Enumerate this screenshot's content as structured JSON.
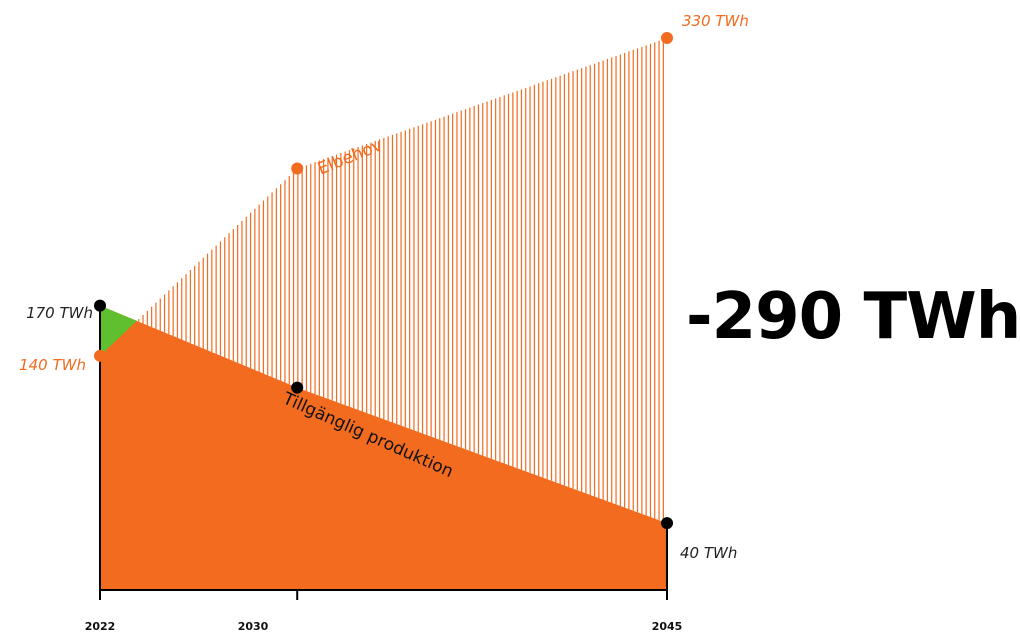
{
  "headline_gap": "-290 TWh",
  "colors": {
    "demand": "#f26b1f",
    "supply": "#f26b1f",
    "surplus": "#5fbf2e",
    "axis": "#000000",
    "supply_marker": "#000000",
    "demand_marker": "#f26b1f"
  },
  "chart_data": {
    "type": "area",
    "x": [
      2022,
      2030,
      2045
    ],
    "x_ticks": [
      "2022",
      "2030",
      "2045"
    ],
    "unit": "TWh",
    "ylim": [
      0,
      330
    ],
    "series": [
      {
        "name": "Elbehov",
        "style": "hatched",
        "values": [
          140,
          252,
          330
        ],
        "point_labels": [
          "140 TWh",
          "",
          "330 TWh"
        ]
      },
      {
        "name": "Tillgänglig produktion",
        "style": "filled",
        "values": [
          170,
          121,
          40
        ],
        "point_labels": [
          "170 TWh",
          "",
          "40 TWh"
        ]
      }
    ],
    "grid": false,
    "legend": "none"
  }
}
